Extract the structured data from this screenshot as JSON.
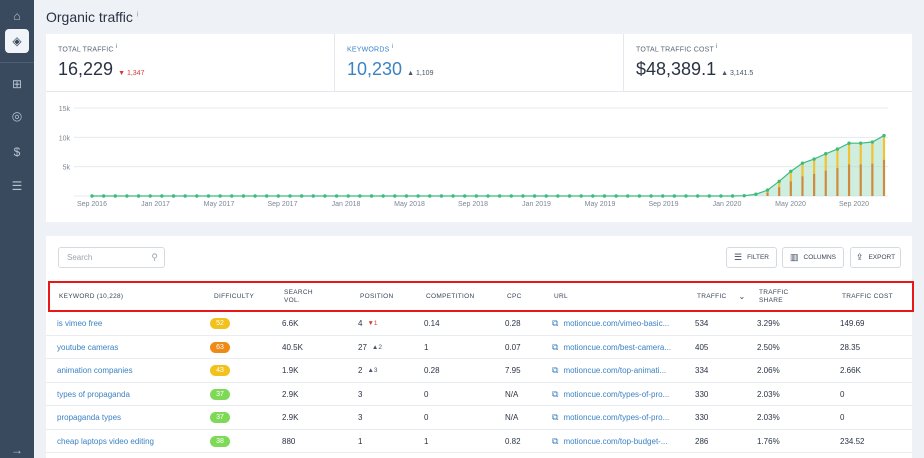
{
  "page": {
    "title": "Organic traffic",
    "info": "i"
  },
  "sidebar": {
    "items": [
      "home-icon",
      "layers-icon",
      "grid-icon",
      "target-icon",
      "dollar-icon",
      "database-icon"
    ],
    "expand": "→"
  },
  "metrics": [
    {
      "label": "TOTAL TRAFFIC",
      "value": "16,229",
      "delta": "1,347",
      "dir": "down",
      "arrow": "▼"
    },
    {
      "label": "KEYWORDS",
      "value": "10,230",
      "delta": "1,109",
      "dir": "up",
      "arrow": "▲"
    },
    {
      "label": "TOTAL TRAFFIC COST",
      "value": "$48,389.1",
      "delta": "3,141.5",
      "dir": "up",
      "arrow": "▲"
    }
  ],
  "chart_data": {
    "type": "area",
    "y_ticks": [
      "15k",
      "10k",
      "5k"
    ],
    "ylim": [
      0,
      15000
    ],
    "x_labels": [
      "Sep 2016",
      "Jan 2017",
      "May 2017",
      "Sep 2017",
      "Jan 2018",
      "May 2018",
      "Sep 2018",
      "Jan 2019",
      "May 2019",
      "Sep 2019",
      "Jan 2020",
      "May 2020",
      "Sep 2020"
    ],
    "grid": true,
    "colors": {
      "area": "#a8e0c4",
      "line": "#3dbb7e",
      "bar_top": "#f1c232",
      "bar_bottom": "#d08a3b"
    },
    "values": [
      0,
      0,
      0,
      0,
      0,
      0,
      0,
      0,
      0,
      0,
      0,
      0,
      0,
      0,
      0,
      0,
      0,
      0,
      0,
      0,
      0,
      0,
      0,
      0,
      0,
      0,
      0,
      0,
      0,
      0,
      0,
      0,
      0,
      0,
      0,
      0,
      0,
      0,
      0,
      0,
      0,
      0,
      0,
      0,
      0,
      0,
      0,
      0,
      0,
      0,
      0,
      0,
      0,
      0,
      0,
      0,
      50,
      300,
      1000,
      2500,
      4200,
      5600,
      6300,
      7200,
      8000,
      9000,
      9000,
      9200,
      10300
    ]
  },
  "toolbar": {
    "search_placeholder": "Search",
    "filter": "FILTER",
    "columns": "COLUMNS",
    "export": "EXPORT"
  },
  "table": {
    "headers": {
      "keyword": "KEYWORD (10,228)",
      "difficulty": "DIFFICULTY",
      "search_vol_1": "SEARCH",
      "search_vol_2": "VOL.",
      "position": "POSITION",
      "competition": "COMPETITION",
      "cpc": "CPC",
      "url": "URL",
      "traffic": "TRAFFIC",
      "traffic_share_1": "TRAFFIC",
      "traffic_share_2": "SHARE",
      "traffic_cost": "TRAFFIC COST"
    },
    "rows": [
      {
        "keyword": "is vimeo free",
        "difficulty": "52",
        "dcolor": "#f2c11c",
        "vol": "6.6K",
        "position": "4",
        "pdelta": "▼1",
        "pdir": "down",
        "competition": "0.14",
        "cpc": "0.28",
        "url": "motioncue.com/vimeo-basic...",
        "traffic": "534",
        "share": "3.29%",
        "cost": "149.69"
      },
      {
        "keyword": "youtube cameras",
        "difficulty": "63",
        "dcolor": "#ee8a16",
        "vol": "40.5K",
        "position": "27",
        "pdelta": "▲2",
        "pdir": "up",
        "competition": "1",
        "cpc": "0.07",
        "url": "motioncue.com/best-camera...",
        "traffic": "405",
        "share": "2.50%",
        "cost": "28.35"
      },
      {
        "keyword": "animation companies",
        "difficulty": "43",
        "dcolor": "#f2c11c",
        "vol": "1.9K",
        "position": "2",
        "pdelta": "▲3",
        "pdir": "up",
        "competition": "0.28",
        "cpc": "7.95",
        "url": "motioncue.com/top-animati...",
        "traffic": "334",
        "share": "2.06%",
        "cost": "2.66K"
      },
      {
        "keyword": "types of propaganda",
        "difficulty": "37",
        "dcolor": "#7ed957",
        "vol": "2.9K",
        "position": "3",
        "pdelta": "",
        "pdir": "",
        "competition": "0",
        "cpc": "N/A",
        "url": "motioncue.com/types-of-pro...",
        "traffic": "330",
        "share": "2.03%",
        "cost": "0"
      },
      {
        "keyword": "propaganda types",
        "difficulty": "37",
        "dcolor": "#7ed957",
        "vol": "2.9K",
        "position": "3",
        "pdelta": "",
        "pdir": "",
        "competition": "0",
        "cpc": "N/A",
        "url": "motioncue.com/types-of-pro...",
        "traffic": "330",
        "share": "2.03%",
        "cost": "0"
      },
      {
        "keyword": "cheap laptops video editing",
        "difficulty": "38",
        "dcolor": "#7ed957",
        "vol": "880",
        "position": "1",
        "pdelta": "",
        "pdir": "",
        "competition": "1",
        "cpc": "0.82",
        "url": "motioncue.com/top-budget-...",
        "traffic": "286",
        "share": "1.76%",
        "cost": "234.52"
      }
    ]
  }
}
